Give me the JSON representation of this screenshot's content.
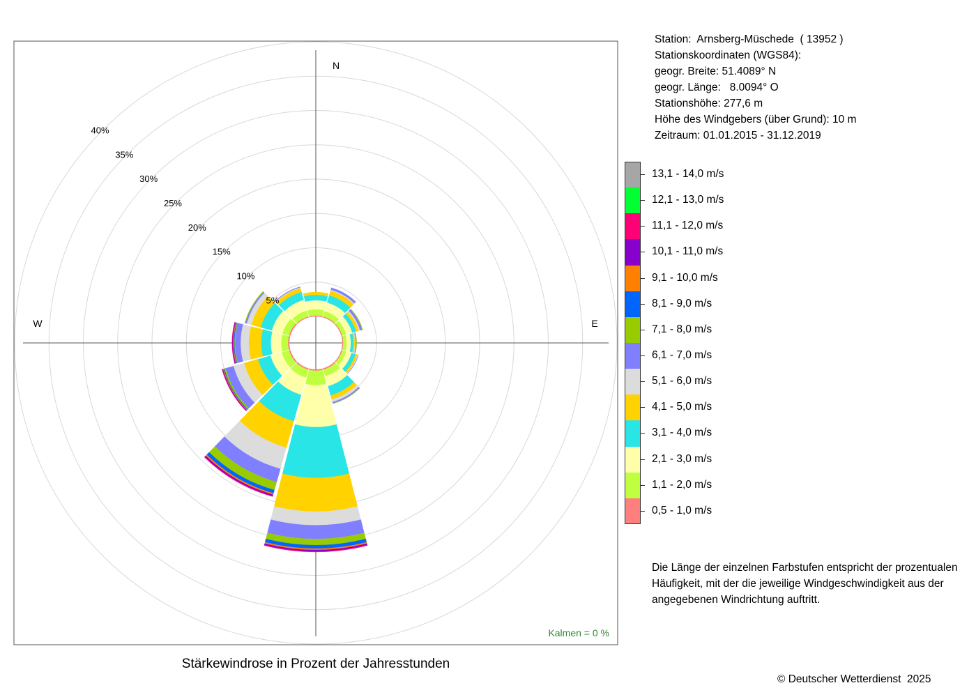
{
  "info": {
    "station": "Station:  Arnsberg-Müschede  ( 13952 )",
    "coords_label": "Stationskoordinaten (WGS84):",
    "lat": "geogr. Breite: 51.4089° N",
    "lon": "geogr. Länge:   8.0094° O",
    "elevation": "Stationshöhe: 277,6 m",
    "sensor_height": "Höhe des Windgebers (über Grund): 10 m",
    "period": "Zeitraum: 01.01.2015 - 31.12.2019"
  },
  "note": "Die Länge der einzelnen Farbstufen entspricht der prozentualen Häufigkeit, mit der die jeweilige Windgeschwindigkeit aus der angegebenen Windrichtung auftritt.",
  "calm_label": "Kalmen  =  0 %",
  "title": "Stärkewindrose in Prozent der Jahresstunden",
  "copyright": "© Deutscher Wetterdienst  2025",
  "chart_data": {
    "type": "wind-rose",
    "title": "Stärkewindrose in Prozent der Jahresstunden",
    "unit": "%",
    "radial_ticks": [
      5,
      10,
      15,
      20,
      25,
      30,
      35,
      40
    ],
    "radial_tick_labels": [
      "5%",
      "10%",
      "15%",
      "20%",
      "25%",
      "30%",
      "35%",
      "40%"
    ],
    "rlim": [
      0,
      40
    ],
    "compass_labels": [
      "N",
      "E",
      "W"
    ],
    "calm_percent": 0,
    "bins": [
      {
        "label": "0,5 - 1,0 m/s",
        "color": "#FF7F7F"
      },
      {
        "label": "1,1 - 2,0 m/s",
        "color": "#BFFF3F"
      },
      {
        "label": "2,1 - 3,0 m/s",
        "color": "#FFFFAA"
      },
      {
        "label": "3,1 - 4,0 m/s",
        "color": "#29E5E5"
      },
      {
        "label": "4,1 - 5,0 m/s",
        "color": "#FFD200"
      },
      {
        "label": "5,1 - 6,0 m/s",
        "color": "#DCDCDC"
      },
      {
        "label": "6,1 - 7,0 m/s",
        "color": "#7F7FFF"
      },
      {
        "label": "7,1 - 8,0 m/s",
        "color": "#99CC00"
      },
      {
        "label": "8,1 - 9,0 m/s",
        "color": "#0066FF"
      },
      {
        "label": "9,1 - 10,0 m/s",
        "color": "#FF8000"
      },
      {
        "label": "10,1 - 11,0 m/s",
        "color": "#8800CC"
      },
      {
        "label": "11,1 - 12,0 m/s",
        "color": "#FF0077"
      },
      {
        "label": "12,1 - 13,0 m/s",
        "color": "#00FF33"
      },
      {
        "label": "13,1 - 14,0 m/s",
        "color": "#A6A6A6"
      }
    ],
    "directions": [
      0,
      30,
      60,
      90,
      120,
      150,
      180,
      210,
      240,
      270,
      300,
      330
    ],
    "series": [
      {
        "direction": 0,
        "values": [
          0.15,
          0.9,
          1.3,
          0.8,
          0.4,
          0.0,
          0.0,
          0.0,
          0.0,
          0.0,
          0.0,
          0.0,
          0.0,
          0.0
        ]
      },
      {
        "direction": 30,
        "values": [
          0.15,
          0.8,
          1.3,
          1.1,
          0.7,
          0.15,
          0.3,
          0.0,
          0.0,
          0.0,
          0.0,
          0.0,
          0.0,
          0.0
        ]
      },
      {
        "direction": 60,
        "values": [
          0.15,
          0.6,
          0.9,
          0.6,
          0.4,
          0.2,
          0.3,
          0.1,
          0.0,
          0.0,
          0.0,
          0.0,
          0.0,
          0.0
        ]
      },
      {
        "direction": 90,
        "values": [
          0.15,
          0.5,
          0.6,
          0.4,
          0.2,
          0.1,
          0.1,
          0.05,
          0.0,
          0.0,
          0.0,
          0.0,
          0.0,
          0.0
        ]
      },
      {
        "direction": 120,
        "values": [
          0.15,
          0.6,
          0.8,
          0.6,
          0.3,
          0.1,
          0.05,
          0.0,
          0.0,
          0.0,
          0.0,
          0.0,
          0.0,
          0.0
        ]
      },
      {
        "direction": 150,
        "values": [
          0.2,
          1.0,
          1.5,
          1.4,
          0.6,
          0.4,
          0.2,
          0.05,
          0.0,
          0.0,
          0.0,
          0.0,
          0.0,
          0.0
        ]
      },
      {
        "direction": 180,
        "values": [
          0.2,
          2.1,
          6.1,
          7.4,
          4.9,
          2.0,
          2.0,
          0.9,
          0.5,
          0.2,
          0.2,
          0.1,
          0.0,
          0.0
        ]
      },
      {
        "direction": 210,
        "values": [
          0.2,
          1.2,
          2.6,
          4.0,
          4.0,
          3.2,
          2.0,
          1.2,
          0.5,
          0.2,
          0.2,
          0.1,
          0.0,
          0.0
        ]
      },
      {
        "direction": 240,
        "values": [
          0.2,
          1.1,
          1.7,
          1.9,
          2.1,
          1.6,
          1.2,
          0.2,
          0.1,
          0.1,
          0.1,
          0.05,
          0.0,
          0.0
        ]
      },
      {
        "direction": 270,
        "values": [
          0.2,
          1.0,
          1.5,
          1.4,
          1.8,
          1.2,
          0.8,
          0.1,
          0.1,
          0.1,
          0.1,
          0.05,
          0.0,
          0.0
        ]
      },
      {
        "direction": 300,
        "values": [
          0.2,
          1.0,
          1.6,
          1.7,
          1.4,
          0.7,
          0.2,
          0.1,
          0.0,
          0.0,
          0.0,
          0.0,
          0.0,
          0.0
        ]
      },
      {
        "direction": 330,
        "values": [
          0.15,
          0.9,
          1.6,
          1.2,
          0.6,
          0.1,
          0.1,
          0.0,
          0.0,
          0.0,
          0.0,
          0.0,
          0.0,
          0.0
        ]
      }
    ]
  }
}
